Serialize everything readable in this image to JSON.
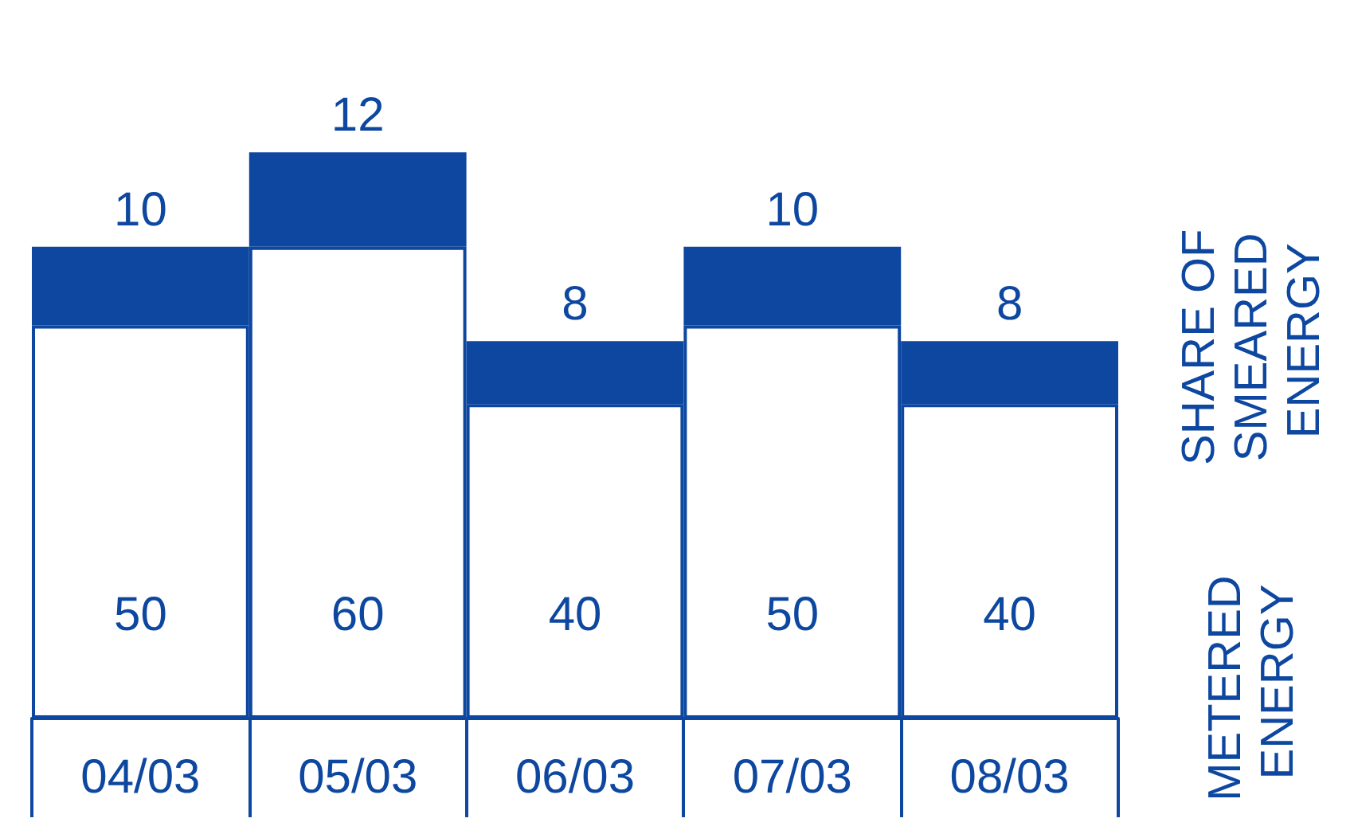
{
  "chart_data": {
    "type": "bar",
    "stacked": true,
    "data_labels": true,
    "categories": [
      "04/03",
      "05/03",
      "06/03",
      "07/03",
      "08/03"
    ],
    "series": [
      {
        "name": "METERED ENERGY",
        "color": "#ffffff",
        "values": [
          50,
          60,
          40,
          50,
          40
        ]
      },
      {
        "name": "SHARE OF SMEARED ENERGY",
        "color": "#0d47a0",
        "values": [
          10,
          12,
          8,
          10,
          8
        ]
      }
    ]
  }
}
